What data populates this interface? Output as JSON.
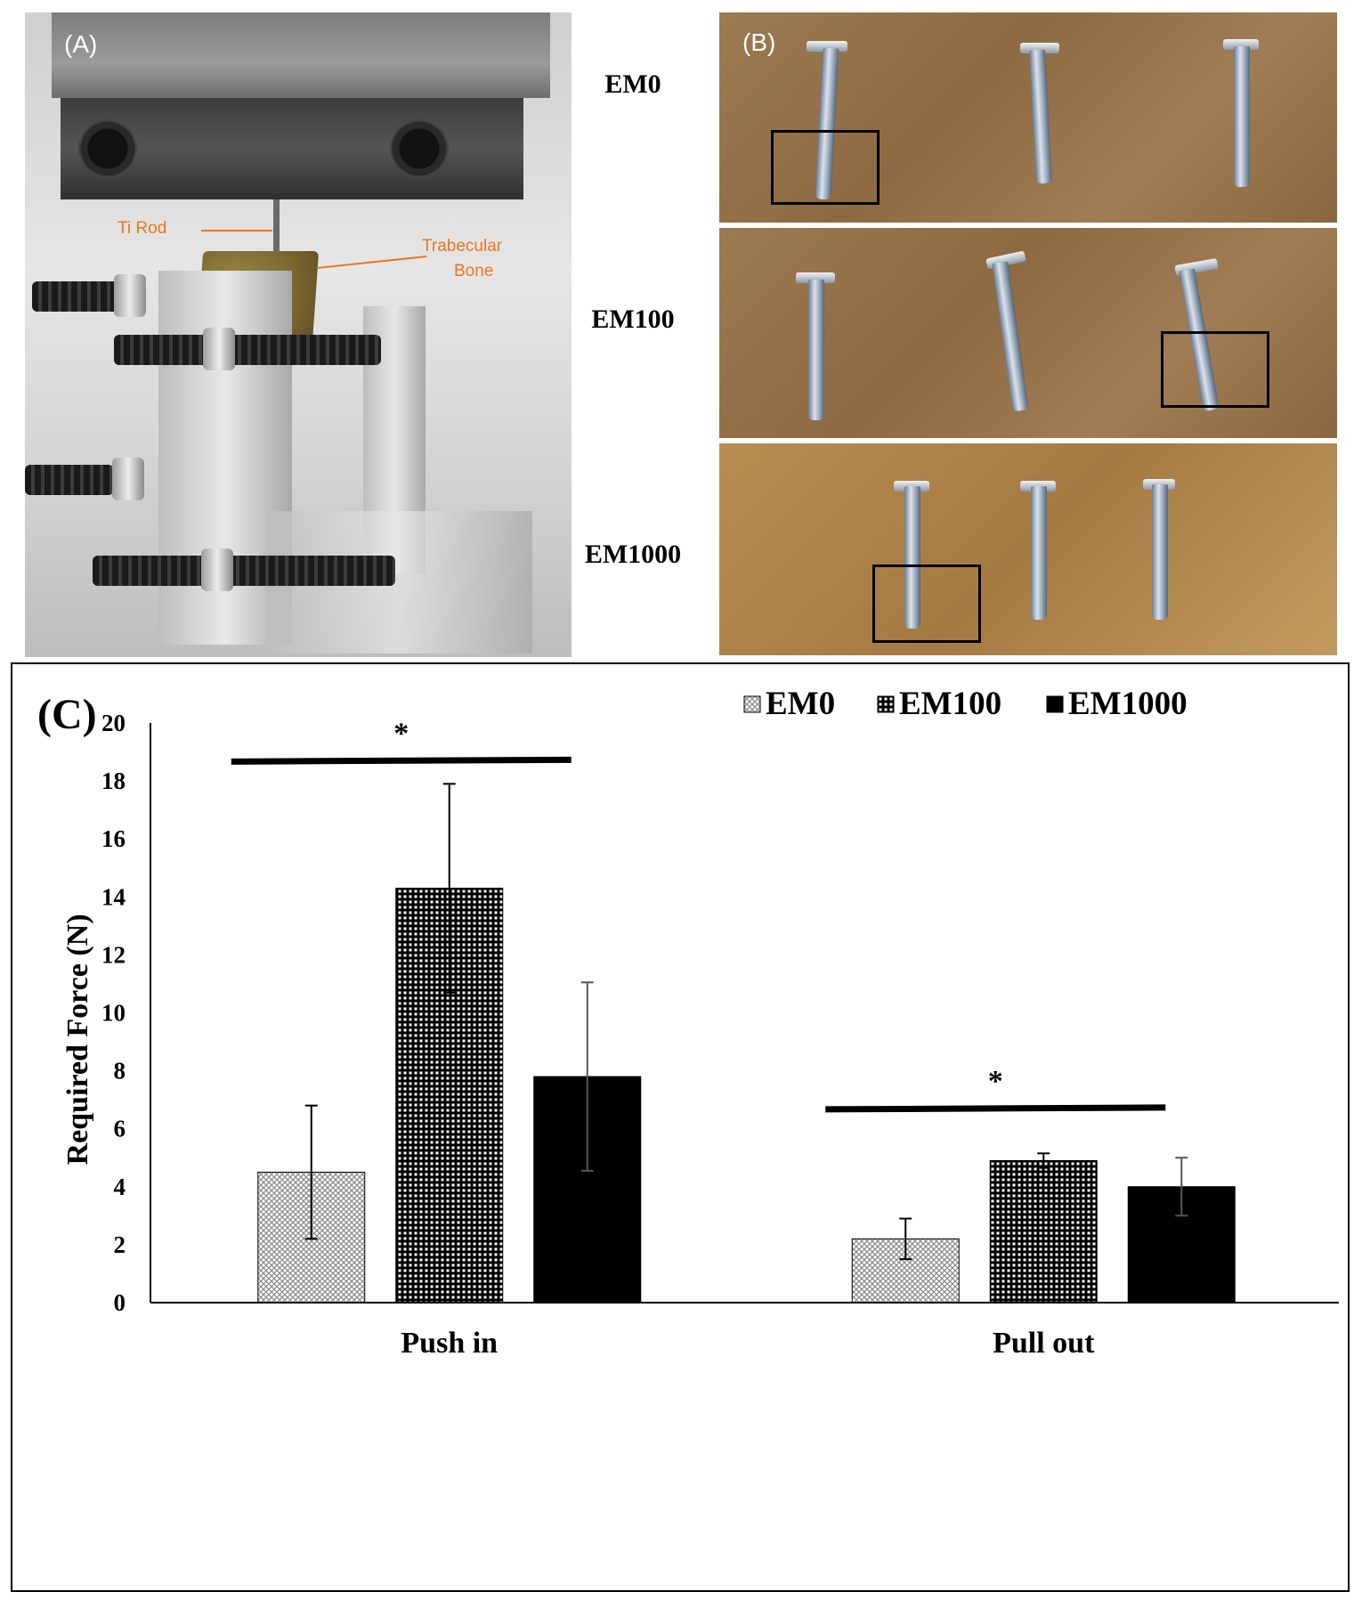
{
  "panel_a": {
    "letter": "(A)",
    "label_rod": "Ti Rod",
    "label_bone_line1": "Trabecular",
    "label_bone_line2": "Bone"
  },
  "panel_b": {
    "letter": "(B)",
    "row_labels": [
      "EM0",
      "EM100",
      "EM1000"
    ]
  },
  "colors": {
    "annotation": "#e8761f",
    "bar_dark": "#000000",
    "pattern_light": "#bdbdbd"
  },
  "chart_data": {
    "panel_letter": "(C)",
    "type": "bar",
    "categories": [
      "Push in",
      "Pull out"
    ],
    "ylabel": "Required Force (N)",
    "xlabel": "",
    "ylim": [
      0,
      20
    ],
    "yticks": [
      0,
      2,
      4,
      6,
      8,
      10,
      12,
      14,
      16,
      18,
      20
    ],
    "grid": false,
    "legend_position": "top-right",
    "series": [
      {
        "name": "EM0",
        "values": [
          4.5,
          2.2
        ],
        "errors": [
          2.3,
          0.7
        ],
        "pattern": "fine-crosshatch"
      },
      {
        "name": "EM100",
        "values": [
          14.3,
          4.9
        ],
        "errors": [
          3.6,
          0.25
        ],
        "pattern": "dense-checker"
      },
      {
        "name": "EM1000",
        "values": [
          7.8,
          4.0
        ],
        "errors": [
          3.25,
          1.0
        ],
        "pattern": "solid-black"
      }
    ],
    "significance": [
      {
        "category": "Push in",
        "marker": "*",
        "y": 18.7
      },
      {
        "category": "Pull out",
        "marker": "*",
        "y": 6.7
      }
    ]
  }
}
